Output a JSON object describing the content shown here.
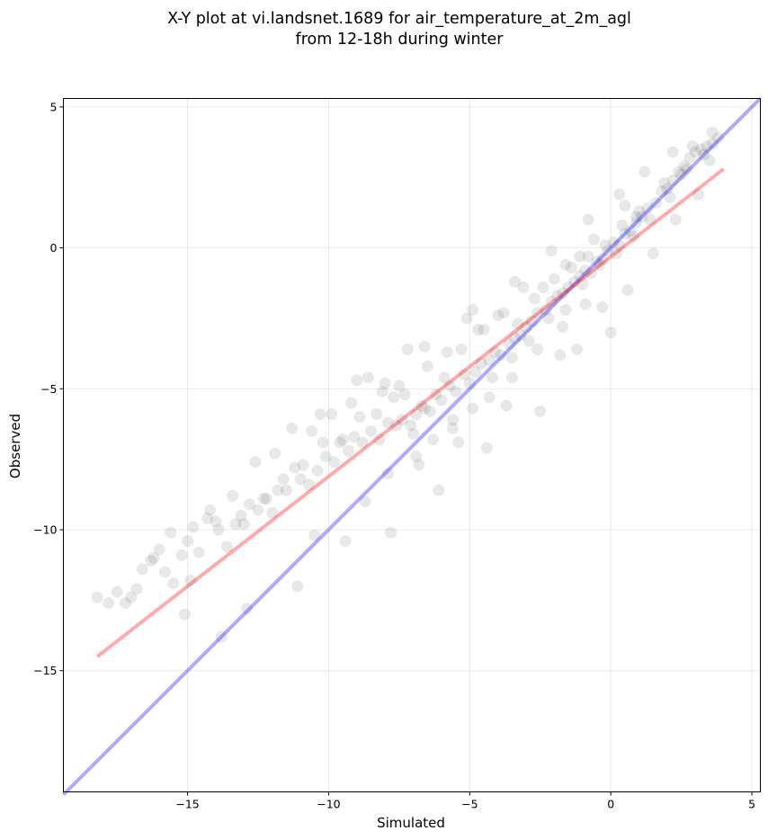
{
  "chart_data": {
    "type": "scatter",
    "title_lines": [
      "X-Y plot at vi.landsnet.1689 for air_temperature_at_2m_agl",
      "from 12-18h during winter"
    ],
    "xlabel": "Simulated",
    "ylabel": "Observed",
    "xlim": [
      -19.4,
      5.3
    ],
    "ylim": [
      -19.3,
      5.3
    ],
    "xticks": [
      -15,
      -10,
      -5,
      0,
      5
    ],
    "yticks": [
      5,
      0,
      -5,
      -10,
      -15
    ],
    "xtick_labels": [
      "−15",
      "−10",
      "−5",
      "0",
      "5"
    ],
    "ytick_labels": [
      "5",
      "0",
      "−5",
      "−10",
      "−15"
    ],
    "grid": true,
    "point_color": "#000000",
    "point_alpha": 0.09,
    "identity_line": {
      "x": [
        -19.4,
        5.3
      ],
      "y": [
        -19.4,
        5.3
      ],
      "color": "#0000ff",
      "alpha": 0.33
    },
    "fit_line": {
      "x": [
        -18.2,
        4.0
      ],
      "y": [
        -14.5,
        2.8
      ],
      "color": "#ff0000",
      "alpha": 0.33
    },
    "points_x": [
      -18.2,
      -17.8,
      -17.5,
      -17.2,
      -17,
      -16.6,
      -16.2,
      -16,
      -15.8,
      -15.5,
      -15.2,
      -15,
      -14.9,
      -14.6,
      -14.3,
      -14,
      -13.9,
      -13.6,
      -13.3,
      -13.1,
      -12.8,
      -12.5,
      -12.3,
      -12,
      -11.8,
      -11.5,
      -11.2,
      -11,
      -10.7,
      -10.4,
      -10.1,
      -9.8,
      -9.6,
      -9.3,
      -9.1,
      -8.8,
      -8.5,
      -8.2,
      -7.9,
      -7.6,
      -7.4,
      -7.1,
      -6.9,
      -6.7,
      -6.4,
      -6.2,
      -6,
      -5.7,
      -5.5,
      -5.2,
      -5,
      -4.8,
      -4.6,
      -4.3,
      -4.1,
      -3.9,
      -3.6,
      -3.4,
      -3.2,
      -3,
      -2.8,
      -2.6,
      -2.3,
      -2.1,
      -1.9,
      -1.7,
      -1.5,
      -1.3,
      -1.1,
      -0.9,
      -0.7,
      -0.5,
      -0.3,
      -0.1,
      0.1,
      0.3,
      0.5,
      0.7,
      0.9,
      1.1,
      1.3,
      1.6,
      1.8,
      2,
      2.2,
      2.4,
      2.6,
      2.8,
      3,
      3.2,
      3.4,
      3.6,
      3.8,
      -15.6,
      -14.2,
      -13.4,
      -12.6,
      -11.9,
      -11.3,
      -10.6,
      -9.9,
      -9.2,
      -8.6,
      -8,
      -7.3,
      -6.6,
      -5.9,
      -5.3,
      -4.7,
      -4,
      -3.3,
      -2.7,
      -2,
      -1.4,
      -0.8,
      -0.2,
      0.4,
      1,
      -16.3,
      -14.8,
      -13,
      -12.2,
      -11.6,
      -10.9,
      -10.2,
      -9.5,
      -8.9,
      -8.3,
      -7.7,
      -7,
      -6.3,
      -5.6,
      -4.9,
      -4.2,
      -3.5,
      -2.9,
      -2.2,
      -1.6,
      -1,
      -0.4,
      0.2,
      0.8,
      1.4,
      2.1,
      2.7,
      3.3,
      -12.9,
      -11.1,
      -9.4,
      -7.8,
      -6.1,
      -4.4,
      -2.5,
      -1.2,
      0,
      0.6,
      1.5,
      2.3,
      3.1,
      -0.3,
      -1.8,
      -3.7,
      -5.4,
      -6.8,
      -8.7,
      -10.5,
      -7.5,
      -6.5,
      -5.8,
      -4.5,
      -3.8,
      -2.4,
      -1.1,
      0.9,
      2.5,
      3.5,
      -9,
      -7.2,
      -5.1,
      -3.1,
      -1.6,
      -0.6,
      0.5,
      1.9,
      2.9,
      -13.8,
      -15.1,
      -16.8,
      -10.3,
      -8.1,
      -6.6,
      -4.9,
      -3.4,
      -2.1,
      -0.8,
      0.3,
      1.2,
      2.2,
      3.6,
      -0.9,
      -1.7,
      -2.6,
      -3.5,
      -4.3,
      -5.6,
      -6.9,
      -7.9
    ],
    "points_y": [
      -12.4,
      -12.6,
      -12.2,
      -12.6,
      -12.4,
      -11.4,
      -11,
      -10.7,
      -11.5,
      -11.9,
      -10.9,
      -10.4,
      -11.8,
      -10.8,
      -9.6,
      -9.7,
      -10,
      -10.6,
      -9.8,
      -9.5,
      -9.1,
      -9.3,
      -8.9,
      -9.4,
      -8.6,
      -8.6,
      -7.8,
      -8.2,
      -8.4,
      -7.9,
      -7.4,
      -7.6,
      -6.9,
      -7.2,
      -6.7,
      -6.9,
      -6.5,
      -6.8,
      -6.2,
      -6.3,
      -6.1,
      -6.3,
      -5.9,
      -5.6,
      -5.8,
      -5.2,
      -5.4,
      -4.9,
      -5.1,
      -4.5,
      -4.8,
      -4.4,
      -4.1,
      -4,
      -3.7,
      -3.8,
      -3.4,
      -3.2,
      -3.1,
      -2.8,
      -2.6,
      -2.3,
      -2.2,
      -1.9,
      -1.7,
      -1.6,
      -1.4,
      -1.2,
      -1,
      -0.8,
      -0.9,
      -0.5,
      -0.4,
      -0.1,
      0.2,
      0.1,
      0.5,
      0.6,
      0.9,
      1.1,
      1.4,
      1.6,
      2,
      2.1,
      2.4,
      2.7,
      2.9,
      3.2,
      3.4,
      3.5,
      3.6,
      3.7,
      3.9,
      -10.1,
      -9.3,
      -8.8,
      -7.6,
      -7.3,
      -6.4,
      -6.5,
      -5.9,
      -5.5,
      -4.6,
      -4.8,
      -5.2,
      -5.7,
      -4.6,
      -3.6,
      -2.9,
      -2.4,
      -2.7,
      -1.8,
      -1.1,
      -0.7,
      -0.3,
      0.1,
      0.8,
      1.3,
      -11.1,
      -9.9,
      -9.8,
      -8.9,
      -8.2,
      -7.7,
      -6.9,
      -6.8,
      -6,
      -5.9,
      -5.3,
      -6.6,
      -6.8,
      -6.1,
      -5.7,
      -4.6,
      -3.9,
      -3.3,
      -2.5,
      -2.2,
      -1.3,
      -0.6,
      -0.2,
      0.4,
      1,
      1.8,
      2.8,
      3.3,
      -12.8,
      -12,
      -10.4,
      -10.1,
      -8.6,
      -7.1,
      -5.8,
      -3.6,
      -3,
      -1.5,
      -0.2,
      1,
      1.9,
      -2.1,
      -3.8,
      -5.6,
      -6.9,
      -7.7,
      -9,
      -10.2,
      -4.9,
      -4.2,
      -3.7,
      -2.9,
      -2.3,
      -1.4,
      -0.3,
      1.1,
      2.6,
      3.1,
      -4.7,
      -3.6,
      -2.5,
      -1.4,
      -0.6,
      0.3,
      1.5,
      2.3,
      3.6,
      -13.8,
      -13,
      -12.1,
      -5.9,
      -5.1,
      -3.5,
      -2.2,
      -1.2,
      -0.1,
      1,
      1.9,
      2.7,
      3.4,
      4.1,
      -2,
      -2.8,
      -3.6,
      -4.6,
      -5.3,
      -6.4,
      -7.4,
      -8
    ]
  }
}
